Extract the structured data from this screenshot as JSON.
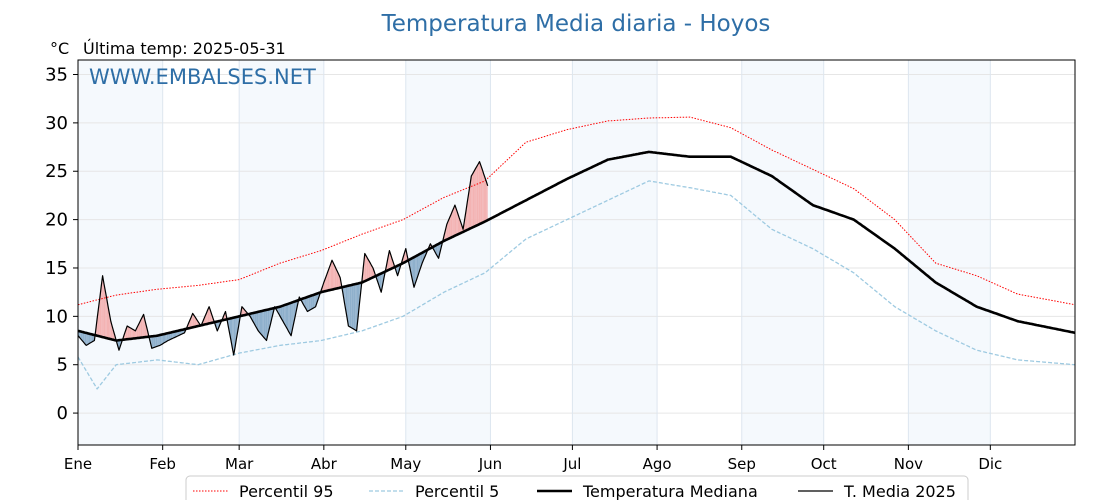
{
  "title": "Temperatura Media diaria - Hoyos",
  "unit": "°C",
  "last_temp": "Última temp: 2025-05-31",
  "watermark": "WWW.EMBALSES.NET",
  "chart_data": {
    "type": "line",
    "ylim": [
      -3.3,
      36.5
    ],
    "xlim": [
      1,
      366
    ],
    "yticks": [
      0,
      5,
      10,
      15,
      20,
      25,
      30,
      35
    ],
    "months": [
      "Ene",
      "Feb",
      "Mar",
      "Abr",
      "May",
      "Jun",
      "Jul",
      "Ago",
      "Sep",
      "Oct",
      "Nov",
      "Dic"
    ],
    "month_start_days": [
      1,
      32,
      60,
      91,
      121,
      152,
      182,
      213,
      244,
      274,
      305,
      335
    ],
    "grid": true,
    "legend_position": "bottom",
    "series": [
      {
        "key": "p95",
        "name": "Percentil 95",
        "color": "#ff0000",
        "style": "dotted",
        "x": [
          1,
          15,
          30,
          45,
          60,
          75,
          90,
          105,
          120,
          135,
          150,
          165,
          180,
          195,
          210,
          225,
          240,
          255,
          270,
          285,
          300,
          315,
          330,
          345,
          366
        ],
        "y": [
          11.2,
          12.2,
          12.8,
          13.2,
          13.8,
          15.5,
          16.8,
          18.5,
          20,
          22.3,
          24,
          28,
          29.3,
          30.2,
          30.5,
          30.6,
          29.5,
          27.2,
          25.2,
          23.2,
          20,
          15.5,
          14.2,
          12.3,
          11.2
        ]
      },
      {
        "key": "p5",
        "name": "Percentil 5",
        "color": "#9ecae1",
        "style": "dashed",
        "x": [
          1,
          8,
          15,
          30,
          45,
          60,
          75,
          90,
          105,
          120,
          135,
          150,
          165,
          180,
          195,
          210,
          225,
          240,
          255,
          270,
          285,
          300,
          315,
          330,
          345,
          366
        ],
        "y": [
          5.8,
          2.5,
          5,
          5.5,
          5,
          6.2,
          7,
          7.5,
          8.5,
          10,
          12.5,
          14.5,
          18,
          20,
          22,
          24,
          23.3,
          22.5,
          19,
          17,
          14.5,
          11,
          8.5,
          6.5,
          5.5,
          5
        ]
      },
      {
        "key": "median",
        "name": "Temperatura Mediana",
        "color": "#000000",
        "style": "solid-thick",
        "x": [
          1,
          15,
          30,
          45,
          60,
          75,
          90,
          105,
          120,
          135,
          150,
          165,
          180,
          195,
          210,
          225,
          240,
          255,
          270,
          285,
          300,
          315,
          330,
          345,
          366
        ],
        "y": [
          8.5,
          7.5,
          8,
          9,
          10,
          11,
          12.5,
          13.5,
          15.5,
          17.8,
          19.8,
          22,
          24.2,
          26.2,
          27,
          26.5,
          26.5,
          24.5,
          21.5,
          20,
          17,
          13.5,
          11,
          9.5,
          8.3
        ]
      },
      {
        "key": "t2025",
        "name": "T. Media 2025",
        "color": "#000000",
        "style": "solid",
        "x": [
          1,
          4,
          7,
          10,
          13,
          16,
          19,
          22,
          25,
          28,
          31,
          34,
          37,
          40,
          43,
          46,
          49,
          52,
          55,
          58,
          61,
          64,
          67,
          70,
          73,
          76,
          79,
          82,
          85,
          88,
          91,
          94,
          97,
          100,
          103,
          106,
          109,
          112,
          115,
          118,
          121,
          124,
          127,
          130,
          133,
          136,
          139,
          142,
          145,
          148,
          151
        ],
        "y": [
          8,
          7,
          7.5,
          14.2,
          9.5,
          6.5,
          9,
          8.5,
          10.2,
          6.7,
          7,
          7.5,
          7.9,
          8.3,
          10.3,
          9,
          11,
          8.5,
          10.5,
          6,
          11,
          10,
          8.5,
          7.5,
          11,
          9.5,
          8,
          12,
          10.5,
          11,
          13.5,
          15.8,
          14,
          9,
          8.5,
          16.5,
          15,
          12.5,
          16.8,
          14.2,
          17,
          13,
          15.5,
          17.5,
          16,
          19.5,
          21.5,
          19,
          24.5,
          26,
          23.5
        ]
      }
    ]
  }
}
